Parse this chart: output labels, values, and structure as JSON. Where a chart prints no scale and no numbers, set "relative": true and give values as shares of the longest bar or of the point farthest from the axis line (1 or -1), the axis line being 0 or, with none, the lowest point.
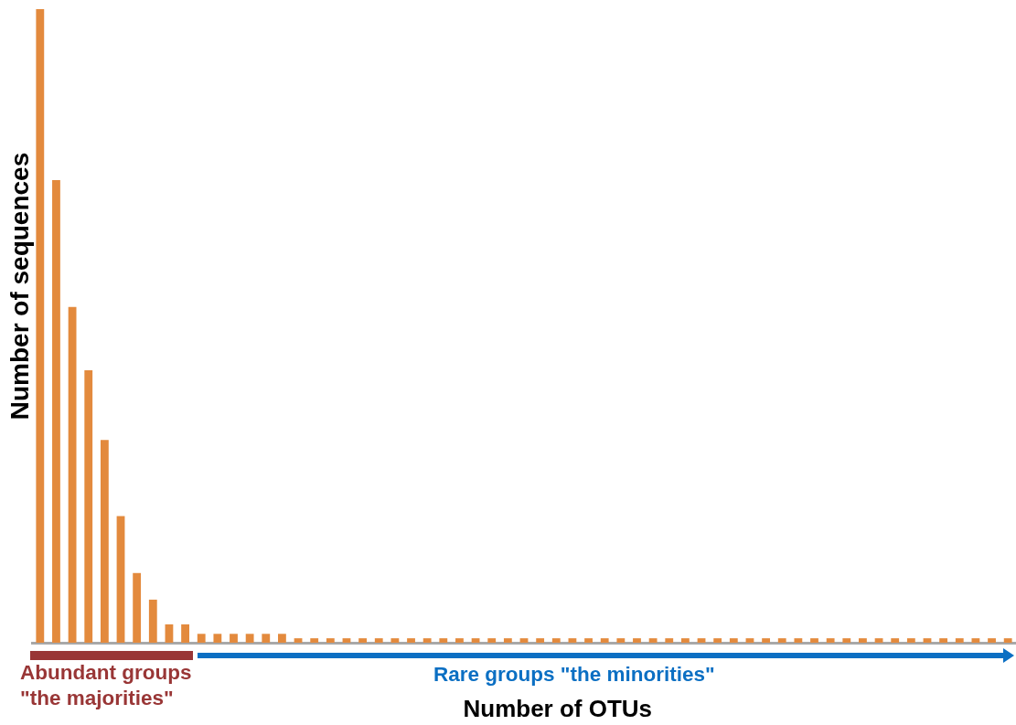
{
  "chart_data": {
    "type": "bar",
    "xlabel": "Number of OTUs",
    "ylabel": "Number of sequences",
    "categories": [
      null,
      null,
      null,
      null,
      null,
      null,
      null,
      null,
      null,
      null,
      null,
      null,
      null,
      null,
      null,
      null,
      null,
      null,
      null,
      null,
      null,
      null,
      null,
      null,
      null,
      null,
      null,
      null,
      null,
      null,
      null,
      null,
      null,
      null,
      null,
      null,
      null,
      null,
      null,
      null,
      null,
      null,
      null,
      null,
      null,
      null,
      null,
      null,
      null,
      null,
      null,
      null,
      null,
      null,
      null,
      null,
      null,
      null,
      null,
      null,
      null
    ],
    "values": [
      1,
      0.73,
      0.53,
      0.43,
      0.32,
      0.2,
      0.11,
      0.068,
      0.029,
      0.029,
      0.014,
      0.014,
      0.014,
      0.014,
      0.014,
      0.014,
      0.007,
      0.007,
      0.007,
      0.007,
      0.007,
      0.007,
      0.007,
      0.007,
      0.007,
      0.007,
      0.007,
      0.007,
      0.007,
      0.007,
      0.007,
      0.007,
      0.007,
      0.007,
      0.007,
      0.007,
      0.007,
      0.007,
      0.007,
      0.007,
      0.007,
      0.007,
      0.007,
      0.007,
      0.007,
      0.007,
      0.007,
      0.007,
      0.007,
      0.007,
      0.007,
      0.007,
      0.007,
      0.007,
      0.007,
      0.007,
      0.007,
      0.007,
      0.007,
      0.007,
      0.007
    ],
    "color": "#e38a3d",
    "relative": true,
    "annotations": [
      "Abundant groups \"the majorities\"",
      "Rare groups \"the minorities\""
    ]
  }
}
